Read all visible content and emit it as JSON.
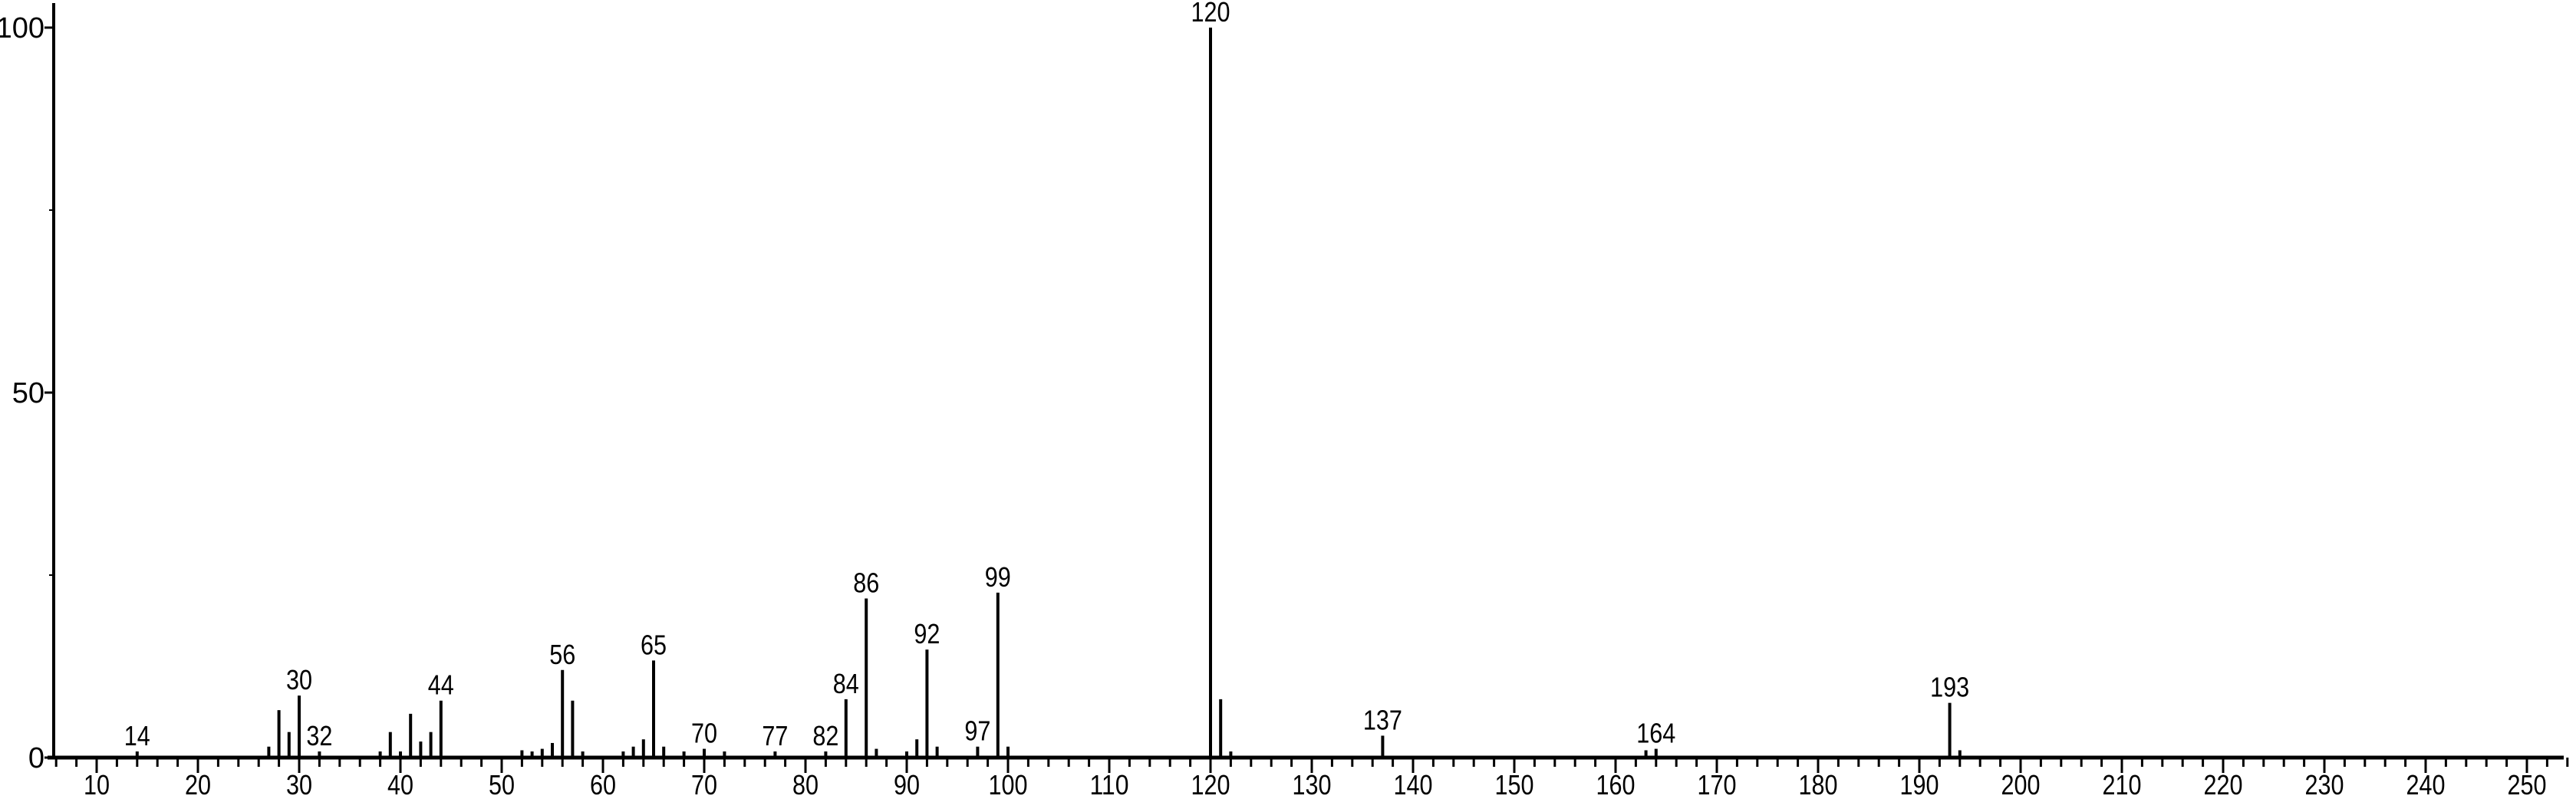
{
  "chart_data": {
    "type": "bar",
    "title": "",
    "xlabel": "",
    "ylabel": "",
    "xlim": [
      5,
      254
    ],
    "ylim": [
      0,
      100
    ],
    "grid": false,
    "x_ticks": [
      10,
      20,
      30,
      40,
      50,
      60,
      70,
      80,
      90,
      100,
      110,
      120,
      130,
      140,
      150,
      160,
      170,
      180,
      190,
      200,
      210,
      220,
      230,
      240,
      250
    ],
    "y_ticks": [
      0,
      50,
      100
    ],
    "peaks": [
      {
        "x": 14,
        "y": 0.5,
        "label": "14"
      },
      {
        "x": 27,
        "y": 1.5
      },
      {
        "x": 28,
        "y": 6.5
      },
      {
        "x": 29,
        "y": 3.5
      },
      {
        "x": 30,
        "y": 8.5,
        "label": "30"
      },
      {
        "x": 32,
        "y": 0.8,
        "label": "32"
      },
      {
        "x": 38,
        "y": 0.5
      },
      {
        "x": 39,
        "y": 3.5
      },
      {
        "x": 40,
        "y": 0.8
      },
      {
        "x": 41,
        "y": 6
      },
      {
        "x": 42,
        "y": 2.2
      },
      {
        "x": 43,
        "y": 3.5
      },
      {
        "x": 44,
        "y": 7.8,
        "label": "44"
      },
      {
        "x": 52,
        "y": 1
      },
      {
        "x": 53,
        "y": 0.5
      },
      {
        "x": 54,
        "y": 1.2
      },
      {
        "x": 55,
        "y": 2
      },
      {
        "x": 56,
        "y": 12,
        "label": "56"
      },
      {
        "x": 57,
        "y": 7.8
      },
      {
        "x": 58,
        "y": 0.5
      },
      {
        "x": 62,
        "y": 0.5
      },
      {
        "x": 63,
        "y": 1.5
      },
      {
        "x": 64,
        "y": 2.5
      },
      {
        "x": 65,
        "y": 13.3,
        "label": "65"
      },
      {
        "x": 66,
        "y": 1.5
      },
      {
        "x": 68,
        "y": 0.5
      },
      {
        "x": 70,
        "y": 1.2,
        "label": "70"
      },
      {
        "x": 72,
        "y": 0.5
      },
      {
        "x": 77,
        "y": 0.5,
        "label": "77"
      },
      {
        "x": 82,
        "y": 0.8,
        "label": "82"
      },
      {
        "x": 84,
        "y": 8,
        "label": "84"
      },
      {
        "x": 86,
        "y": 21.8,
        "label": "86"
      },
      {
        "x": 87,
        "y": 1.2
      },
      {
        "x": 90,
        "y": 0.5
      },
      {
        "x": 91,
        "y": 2.5
      },
      {
        "x": 92,
        "y": 14.8,
        "label": "92"
      },
      {
        "x": 93,
        "y": 1.5
      },
      {
        "x": 97,
        "y": 1.5,
        "label": "97"
      },
      {
        "x": 99,
        "y": 22.6,
        "label": "99"
      },
      {
        "x": 100,
        "y": 1.5
      },
      {
        "x": 120,
        "y": 100,
        "label": "120"
      },
      {
        "x": 121,
        "y": 8
      },
      {
        "x": 122,
        "y": 0.5
      },
      {
        "x": 137,
        "y": 3,
        "label": "137"
      },
      {
        "x": 163,
        "y": 1
      },
      {
        "x": 164,
        "y": 1.2,
        "label": "164"
      },
      {
        "x": 193,
        "y": 7.5,
        "label": "193"
      },
      {
        "x": 194,
        "y": 1
      }
    ],
    "colors": {
      "axis": "#000000",
      "bars": "#000000"
    }
  }
}
